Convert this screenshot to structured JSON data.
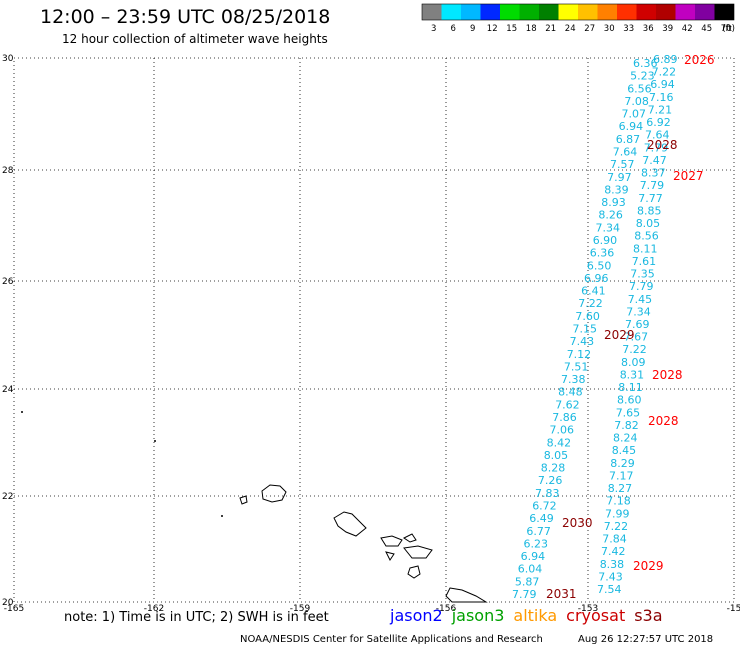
{
  "header": {
    "title": "12:00 – 23:59 UTC 08/25/2018",
    "subtitle": "12 hour collection of altimeter wave heights"
  },
  "colorbar": {
    "ticks": [
      "3",
      "6",
      "9",
      "12",
      "15",
      "18",
      "21",
      "24",
      "27",
      "30",
      "33",
      "36",
      "39",
      "42",
      "45",
      "70"
    ],
    "unit": "(ft)",
    "colors": [
      "#808080",
      "#00e8ff",
      "#00b8ff",
      "#0028ff",
      "#00dc00",
      "#00b000",
      "#008000",
      "#ffff00",
      "#ffc000",
      "#ff8000",
      "#ff3000",
      "#d00000",
      "#b00000",
      "#c000c0",
      "#8000a0",
      "#000000"
    ]
  },
  "axes": {
    "lat_ticks": [
      "30",
      "28",
      "26",
      "24",
      "22",
      "20"
    ],
    "lon_ticks": [
      "-165",
      "-162",
      "-159",
      "-156",
      "-153",
      "-15"
    ],
    "grid": "dotted"
  },
  "tracks": {
    "west": [
      "7.79",
      "5.87",
      "6.04",
      "6.94",
      "6.23",
      "6.77",
      "6.49",
      "6.72",
      "7.83",
      "7.26",
      "8.28",
      "8.05",
      "8.42",
      "7.06",
      "7.86",
      "7.62",
      "8.48",
      "7.38",
      "7.51",
      "7.12",
      "7.43",
      "7.15",
      "7.60",
      "7.22",
      "6.41",
      "6.96",
      "6.50",
      "6.36",
      "6.90",
      "7.34",
      "8.26",
      "8.93",
      "8.39",
      "7.97",
      "7.57",
      "7.64",
      "6.87",
      "6.94",
      "7.07",
      "7.08",
      "6.56",
      "5.23",
      "6.36"
    ],
    "east": [
      "7.54",
      "7.43",
      "8.38",
      "7.42",
      "7.84",
      "7.22",
      "7.99",
      "7.18",
      "8.27",
      "7.17",
      "8.29",
      "8.45",
      "8.24",
      "7.82",
      "7.65",
      "8.60",
      "8.11",
      "8.31",
      "8.09",
      "7.22",
      "7.67",
      "7.69",
      "7.34",
      "7.45",
      "7.79",
      "7.35",
      "7.61",
      "8.11",
      "8.56",
      "8.05",
      "8.85",
      "7.77",
      "7.79",
      "8.37",
      "7.47",
      "7.79",
      "7.64",
      "6.92",
      "7.21",
      "7.16",
      "6.94",
      "7.22",
      "6.89"
    ]
  },
  "time_labels": [
    {
      "text": "2026",
      "color": "#ff0000"
    },
    {
      "text": "2028",
      "color": "#8b0000"
    },
    {
      "text": "2027",
      "color": "#ff0000"
    },
    {
      "text": "2029",
      "color": "#8b0000"
    },
    {
      "text": "2028",
      "color": "#ff0000"
    },
    {
      "text": "2028",
      "color": "#ff0000"
    },
    {
      "text": "2030",
      "color": "#8b0000"
    },
    {
      "text": "2029",
      "color": "#ff0000"
    },
    {
      "text": "2031",
      "color": "#8b0000"
    }
  ],
  "footer": {
    "note": "note: 1) Time is in UTC; 2) SWH is in feet",
    "credit": "NOAA/NESDIS Center for Satellite Applications and Research",
    "timestamp": "Aug 26 12:27:57 UTC 2018"
  },
  "legend": [
    {
      "label": "jason2",
      "color": "#0000ff"
    },
    {
      "label": "jason3",
      "color": "#00a000"
    },
    {
      "label": "altika",
      "color": "#ff9900"
    },
    {
      "label": "cryosat",
      "color": "#cc0000"
    },
    {
      "label": "s3a",
      "color": "#8b0000"
    }
  ]
}
